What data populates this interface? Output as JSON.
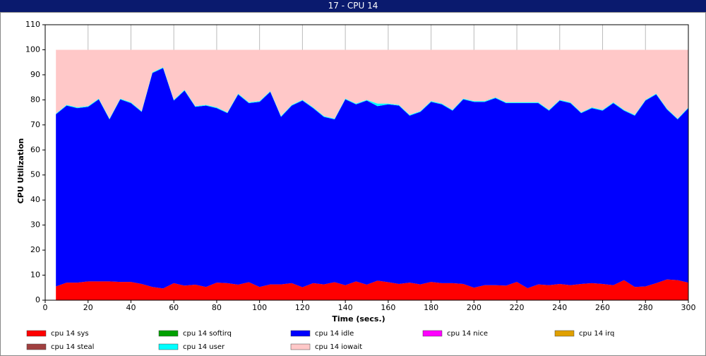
{
  "window_title": "17 - CPU 14",
  "chart_data": {
    "type": "stacked-area",
    "xlabel": "Time (secs.)",
    "ylabel": "CPU Utilization",
    "xlim": [
      0,
      300
    ],
    "ylim": [
      0,
      110
    ],
    "xticks": [
      0,
      20,
      40,
      60,
      80,
      100,
      120,
      140,
      160,
      180,
      200,
      220,
      240,
      260,
      280,
      300
    ],
    "yticks": [
      0,
      10,
      20,
      30,
      40,
      50,
      60,
      70,
      80,
      90,
      100,
      110
    ],
    "grid": true,
    "x": [
      5,
      10,
      15,
      20,
      25,
      30,
      35,
      40,
      45,
      50,
      55,
      60,
      65,
      70,
      75,
      80,
      85,
      90,
      95,
      100,
      105,
      110,
      115,
      120,
      125,
      130,
      135,
      140,
      145,
      150,
      155,
      160,
      165,
      170,
      175,
      180,
      185,
      190,
      195,
      200,
      205,
      210,
      215,
      220,
      225,
      230,
      235,
      240,
      245,
      250,
      255,
      260,
      265,
      270,
      275,
      280,
      285,
      290,
      295,
      300
    ],
    "series": [
      {
        "name": "cpu 14 sys",
        "color": "#ff0000",
        "values": [
          5.5,
          7,
          7,
          7.5,
          7.5,
          7.5,
          7.3,
          7.3,
          6.5,
          5.3,
          4.7,
          6.8,
          5.8,
          6.2,
          5.3,
          7,
          6.8,
          6.2,
          7.2,
          5.3,
          6.3,
          6.3,
          6.8,
          5.2,
          6.8,
          6.3,
          7.2,
          6,
          7.5,
          6.2,
          7.8,
          7.2,
          6.5,
          7,
          6.3,
          7.3,
          6.8,
          6.8,
          6.5,
          5,
          6,
          6,
          5.8,
          7.3,
          4.8,
          6.3,
          6,
          6.5,
          6,
          6.5,
          6.8,
          6.5,
          6,
          8,
          5.3,
          5.5,
          6.8,
          8.3,
          8,
          7
        ]
      },
      {
        "name": "cpu 14 softirq",
        "color": "#00a000",
        "values": [
          0,
          0,
          0,
          0,
          0,
          0,
          0,
          0,
          0,
          0,
          0,
          0,
          0,
          0,
          0,
          0,
          0,
          0,
          0,
          0,
          0,
          0,
          0,
          0,
          0,
          0,
          0,
          0,
          0,
          0,
          0,
          0,
          0,
          0,
          0,
          0,
          0,
          0,
          0,
          0,
          0,
          0,
          0,
          0,
          0,
          0,
          0,
          0,
          0,
          0,
          0,
          0,
          0,
          0,
          0,
          0,
          0,
          0,
          0,
          0
        ]
      },
      {
        "name": "cpu 14 idle",
        "color": "#0000ff",
        "values": [
          68.7,
          70.7,
          69.7,
          69.7,
          72.7,
          64.7,
          72.9,
          71.4,
          68.7,
          85.4,
          88,
          72.9,
          77.9,
          71,
          72.4,
          69.7,
          67.9,
          76,
          71.5,
          73.9,
          76.9,
          66.9,
          70.9,
          74.5,
          69.9,
          66.9,
          65,
          74.2,
          70.7,
          73.5,
          69.7,
          71,
          71.2,
          66.7,
          68.9,
          71.9,
          71.4,
          68.9,
          73.7,
          74.2,
          73.2,
          74.7,
          72.9,
          71.4,
          73.9,
          72.4,
          69.7,
          73.2,
          72.7,
          68.2,
          69.9,
          69.2,
          72.7,
          67.7,
          68.4,
          74.2,
          75.4,
          67.9,
          64.2,
          69.7
        ]
      },
      {
        "name": "cpu 14 nice",
        "color": "#ff00ff",
        "values": [
          0,
          0,
          0,
          0,
          0,
          0,
          0,
          0,
          0,
          0,
          0,
          0,
          0,
          0,
          0,
          0,
          0,
          0,
          0,
          0,
          0,
          0,
          0,
          0,
          0,
          0,
          0,
          0,
          0,
          0,
          0,
          0,
          0,
          0,
          0,
          0,
          0,
          0,
          0,
          0,
          0,
          0,
          0,
          0,
          0,
          0,
          0,
          0,
          0,
          0,
          0,
          0,
          0,
          0,
          0,
          0,
          0,
          0,
          0,
          0
        ]
      },
      {
        "name": "cpu 14 irq",
        "color": "#e0a000",
        "values": [
          0,
          0,
          0,
          0,
          0,
          0,
          0,
          0,
          0,
          0,
          0,
          0,
          0,
          0,
          0,
          0,
          0,
          0,
          0,
          0,
          0,
          0,
          0,
          0,
          0,
          0,
          0,
          0,
          0,
          0,
          0,
          0,
          0,
          0,
          0,
          0,
          0,
          0,
          0,
          0,
          0,
          0,
          0,
          0,
          0,
          0,
          0,
          0,
          0,
          0,
          0,
          0,
          0,
          0,
          0,
          0,
          0,
          0,
          0,
          0
        ]
      },
      {
        "name": "cpu 14 steal",
        "color": "#a04040",
        "values": [
          0,
          0,
          0,
          0,
          0,
          0,
          0,
          0,
          0,
          0,
          0,
          0,
          0,
          0,
          0,
          0,
          0,
          0,
          0,
          0,
          0,
          0,
          0,
          0,
          0,
          0,
          0,
          0,
          0,
          0,
          0,
          0,
          0,
          0,
          0,
          0,
          0,
          0,
          0,
          0,
          0,
          0,
          0,
          0,
          0,
          0,
          0,
          0,
          0,
          0,
          0,
          0,
          0,
          0,
          0,
          0,
          0,
          0,
          0,
          0
        ]
      },
      {
        "name": "cpu 14 user",
        "color": "#00ffff",
        "values": [
          0.3,
          0.3,
          0.3,
          0.3,
          0.3,
          0.3,
          0.3,
          0.3,
          0.3,
          0.3,
          0.3,
          0.3,
          0.3,
          0.3,
          0.3,
          0.3,
          0.3,
          0.3,
          0.3,
          0.3,
          0.3,
          0.3,
          0.3,
          0.3,
          0.3,
          0.3,
          0.3,
          0.3,
          0.3,
          0.3,
          1.0,
          0.3,
          0.3,
          0.3,
          0.3,
          0.3,
          0.3,
          0.3,
          0.3,
          0.3,
          0.3,
          0.3,
          0.3,
          0.3,
          0.3,
          0.3,
          0.3,
          0.3,
          0.3,
          0.3,
          0.3,
          0.3,
          0.3,
          0.3,
          0.3,
          0.3,
          0.3,
          0.3,
          0.3,
          0.3
        ]
      },
      {
        "name": "cpu 14 iowait",
        "color": "#ffc8c8",
        "values": [
          25.5,
          22,
          23,
          22.5,
          19.5,
          27.5,
          19.5,
          21,
          24.5,
          9,
          7,
          20,
          16,
          22.5,
          22,
          23,
          25,
          17.5,
          21,
          20.5,
          16.5,
          26.5,
          22,
          20,
          23,
          26.5,
          27.5,
          19.5,
          21.5,
          20,
          21.5,
          21.5,
          22,
          26,
          24.5,
          20.5,
          21.5,
          24,
          19.5,
          20.5,
          20.5,
          19,
          21,
          21,
          21,
          21,
          24,
          20,
          21,
          25,
          23,
          24,
          21,
          24,
          26,
          20,
          17.5,
          23.5,
          27.5,
          23
        ]
      }
    ]
  }
}
